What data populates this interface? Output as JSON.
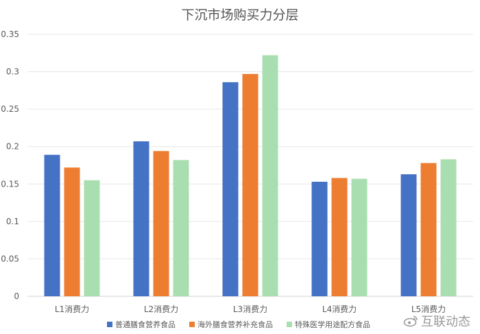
{
  "chart_data": {
    "type": "bar",
    "title": "下沉市场购买力分层",
    "categories": [
      "L1消费力",
      "L2消费力",
      "L3消费力",
      "L4消费力",
      "L5消费力"
    ],
    "series": [
      {
        "name": "普通膳食营养食品",
        "values": [
          0.189,
          0.207,
          0.286,
          0.153,
          0.163
        ],
        "color": "#4472C4"
      },
      {
        "name": "海外膳食营养补充食品",
        "values": [
          0.172,
          0.194,
          0.297,
          0.158,
          0.178
        ],
        "color": "#ED7D31"
      },
      {
        "name": "特殊医学用途配方食品",
        "values": [
          0.155,
          0.182,
          0.322,
          0.157,
          0.183
        ],
        "color": "#A9DFB0"
      }
    ],
    "ylim": [
      0,
      0.35
    ],
    "yticks": [
      "0",
      "0.05",
      "0.1",
      "0.15",
      "0.2",
      "0.25",
      "0.3",
      "0.35"
    ],
    "grid": true,
    "legend": "bottom"
  },
  "watermark": {
    "text": "互联动态",
    "icon": "weibo-icon"
  }
}
